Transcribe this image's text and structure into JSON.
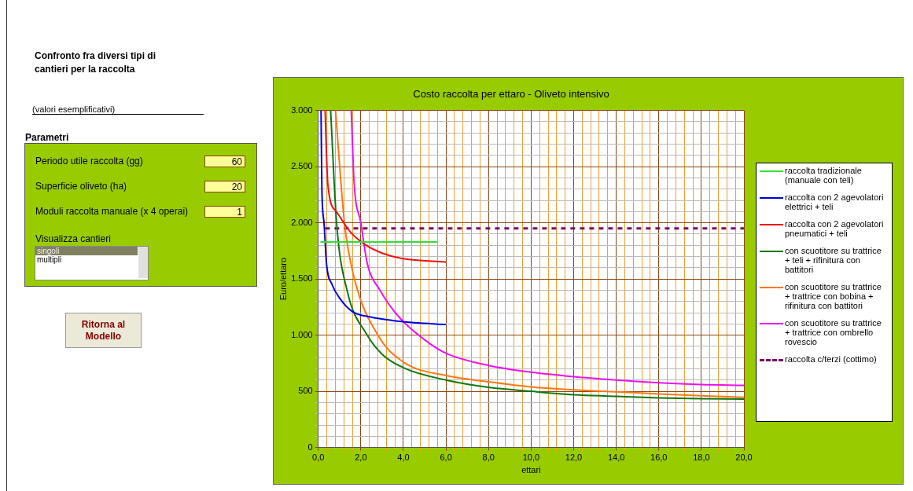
{
  "chart_data": [
    {
      "type": "other",
      "title": "Confronto fra diversi tipi di cantieri per la raccolta",
      "annotations": [
        "(valori esemplificativi)",
        "Parametri",
        "Periodo utile raccolta (gg)",
        "60",
        "Superficie oliveto (ha)",
        "20",
        "Moduli raccolta manuale (x 4 operai)",
        "1",
        "Visualizza cantieri",
        "singoli",
        "multipli",
        "Ritorna al Modello"
      ]
    },
    {
      "type": "line",
      "title": "Costo raccolta per ettaro - Oliveto intensivo",
      "xlabel": "ettari",
      "ylabel": "Euro/ettaro",
      "xlim": [
        0,
        20
      ],
      "ylim": [
        0,
        3000
      ],
      "xticks": [
        {
          "value": 0,
          "label": "0,0"
        },
        {
          "value": 0.4,
          "label": null
        },
        {
          "value": 0.8,
          "label": null
        },
        {
          "value": 1.2,
          "label": null
        },
        {
          "value": 1.6,
          "label": null
        },
        {
          "value": 2,
          "label": "2,0"
        },
        {
          "value": 2.4,
          "label": null
        },
        {
          "value": 2.8,
          "label": null
        },
        {
          "value": 3.2,
          "label": null
        },
        {
          "value": 3.6,
          "label": null
        },
        {
          "value": 4,
          "label": "4,0"
        },
        {
          "value": 4.4,
          "label": null
        },
        {
          "value": 4.8,
          "label": null
        },
        {
          "value": 5.2,
          "label": null
        },
        {
          "value": 5.6,
          "label": null
        },
        {
          "value": 6,
          "label": "6,0"
        },
        {
          "value": 6.4,
          "label": null
        },
        {
          "value": 6.8,
          "label": null
        },
        {
          "value": 7.2,
          "label": null
        },
        {
          "value": 7.6,
          "label": null
        },
        {
          "value": 8,
          "label": "8,0"
        },
        {
          "value": 8.4,
          "label": null
        },
        {
          "value": 8.8,
          "label": null
        },
        {
          "value": 9.2,
          "label": null
        },
        {
          "value": 9.6,
          "label": null
        },
        {
          "value": 10,
          "label": "10,0"
        },
        {
          "value": 10.4,
          "label": null
        },
        {
          "value": 10.8,
          "label": null
        },
        {
          "value": 11.2,
          "label": null
        },
        {
          "value": 11.6,
          "label": null
        },
        {
          "value": 12,
          "label": "12,0"
        },
        {
          "value": 12.4,
          "label": null
        },
        {
          "value": 12.8,
          "label": null
        },
        {
          "value": 13.2,
          "label": null
        },
        {
          "value": 13.6,
          "label": null
        },
        {
          "value": 14,
          "label": "14,0"
        },
        {
          "value": 14.4,
          "label": null
        },
        {
          "value": 14.8,
          "label": null
        },
        {
          "value": 15.2,
          "label": null
        },
        {
          "value": 15.6,
          "label": null
        },
        {
          "value": 16,
          "label": "16,0"
        },
        {
          "value": 16.4,
          "label": null
        },
        {
          "value": 16.8,
          "label": null
        },
        {
          "value": 17.2,
          "label": null
        },
        {
          "value": 17.6,
          "label": null
        },
        {
          "value": 18,
          "label": "18,0"
        },
        {
          "value": 18.4,
          "label": null
        },
        {
          "value": 18.8,
          "label": null
        },
        {
          "value": 19.2,
          "label": null
        },
        {
          "value": 19.6,
          "label": null
        },
        {
          "value": 20,
          "label": "20,0"
        }
      ],
      "yticks": [
        0,
        {
          "value": 100,
          "label": null
        },
        {
          "value": 200,
          "label": null
        },
        {
          "value": 300,
          "label": null
        },
        {
          "value": 400,
          "label": null
        },
        500,
        {
          "value": 600,
          "label": null
        },
        {
          "value": 700,
          "label": null
        },
        {
          "value": 800,
          "label": null
        },
        {
          "value": 900,
          "label": null
        },
        {
          "value": 1000,
          "label": "1.000"
        },
        {
          "value": 1100,
          "label": null
        },
        {
          "value": 1200,
          "label": null
        },
        {
          "value": 1300,
          "label": null
        },
        {
          "value": 1400,
          "label": null
        },
        {
          "value": 1500,
          "label": "1.500"
        },
        {
          "value": 1600,
          "label": null
        },
        {
          "value": 1700,
          "label": null
        },
        {
          "value": 1800,
          "label": null
        },
        {
          "value": 1900,
          "label": null
        },
        {
          "value": 2000,
          "label": "2.000"
        },
        {
          "value": 2100,
          "label": null
        },
        {
          "value": 2200,
          "label": null
        },
        {
          "value": 2300,
          "label": null
        },
        {
          "value": 2400,
          "label": null
        },
        {
          "value": 2500,
          "label": "2.500"
        },
        {
          "value": 2600,
          "label": null
        },
        {
          "value": 2700,
          "label": null
        },
        {
          "value": 2800,
          "label": null
        },
        {
          "value": 2900,
          "label": null
        },
        {
          "value": 3000,
          "label": "3.000"
        }
      ],
      "grid": true,
      "legend": "right",
      "marker": "none",
      "series": [
        {
          "name": "raccolta tradizionale (manuale con teli)",
          "color": "#33dd33",
          "x": [
            0.1,
            5.6
          ],
          "values": [
            1830,
            1830
          ]
        },
        {
          "name": "raccolta con 2 agevolatori elettrici + teli",
          "color": "#0000dd",
          "x": [
            0.13,
            0.17,
            0.27,
            0.39,
            0.65,
            1.0,
            1.6,
            2.5,
            3.5,
            4.5,
            6.0
          ],
          "values": [
            3000,
            2300,
            2000,
            1630,
            1450,
            1330,
            1210,
            1160,
            1130,
            1110,
            1095
          ]
        },
        {
          "name": "raccolta con 2 agevolatori pneumatici + teli",
          "color": "#ee1111",
          "x": [
            0.32,
            0.45,
            0.85,
            1.5,
            2.25,
            3.0,
            4.0,
            6.0
          ],
          "values": [
            3000,
            2340,
            2100,
            1920,
            1800,
            1730,
            1680,
            1650
          ]
        },
        {
          "name": "con scuotitore su trattrice + teli + rifinitura con battitori",
          "color": "#117711",
          "x": [
            0.58,
            0.86,
            1.35,
            2.3,
            3.0,
            4.0,
            6.0,
            8.0,
            10,
            12,
            14,
            16,
            18,
            20
          ],
          "values": [
            3000,
            2000,
            1400,
            1000,
            830,
            710,
            600,
            535,
            500,
            470,
            455,
            442,
            435,
            430
          ]
        },
        {
          "name": "con scuotitore su trattrice + trattrice con bobina + rifinitura con battitori",
          "color": "#ff7711",
          "x": [
            0.81,
            1.23,
            1.7,
            2.8,
            4.0,
            6.0,
            8.0,
            10,
            12,
            14,
            16,
            18,
            20
          ],
          "values": [
            3000,
            2000,
            1500,
            1000,
            760,
            640,
            585,
            540,
            513,
            495,
            477,
            460,
            446
          ]
        },
        {
          "name": "con scuotitore su trattrice + trattrice con ombrello rovescio",
          "color": "#ee11ee",
          "x": [
            1.55,
            1.68,
            2.0,
            2.3,
            2.9,
            3.8,
            5.2,
            6.1,
            8.0,
            10,
            12,
            14,
            16,
            18,
            20
          ],
          "values": [
            3000,
            2370,
            2000,
            1640,
            1400,
            1160,
            930,
            830,
            730,
            670,
            630,
            600,
            576,
            560,
            553
          ]
        },
        {
          "name": "raccolta c/terzi (cottimo)",
          "color": "#771166",
          "line_style": "dashed",
          "x": [
            0.32,
            20
          ],
          "values": [
            1950,
            1950
          ]
        }
      ]
    }
  ]
}
